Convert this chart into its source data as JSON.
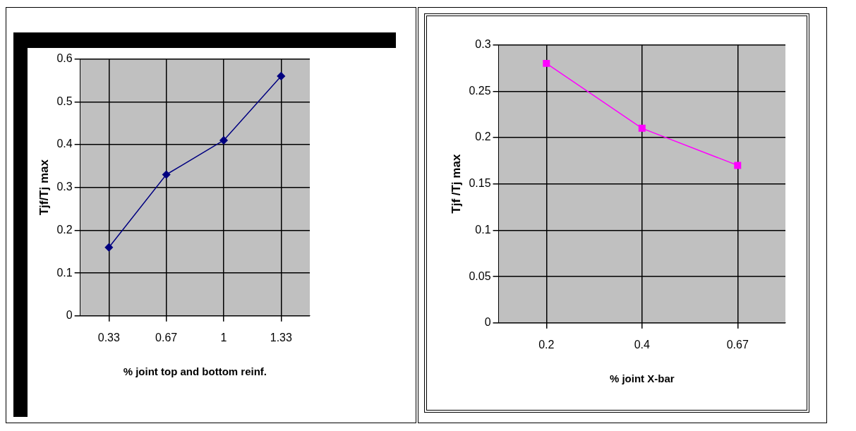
{
  "chart_data": [
    {
      "type": "line",
      "xlabel": "% joint top and bottom reinf.",
      "ylabel": "Tjf/Tj max",
      "categories": [
        "0.33",
        "0.67",
        "1",
        "1.33"
      ],
      "series": [
        {
          "color": "#000080",
          "values": [
            0.16,
            0.33,
            0.41,
            0.56
          ]
        }
      ],
      "ylim": [
        0,
        0.6
      ],
      "yticks": [
        0,
        0.1,
        0.2,
        0.3,
        0.4,
        0.5,
        0.6
      ],
      "grid": true,
      "marker": "diamond",
      "legend": false
    },
    {
      "type": "line",
      "xlabel": "% joint X-bar",
      "ylabel": "Tjf /Tj max",
      "categories": [
        "0.2",
        "0.4",
        "0.67"
      ],
      "series": [
        {
          "color": "#ff00ff",
          "values": [
            0.28,
            0.21,
            0.17
          ]
        }
      ],
      "ylim": [
        0,
        0.3
      ],
      "yticks": [
        0,
        0.05,
        0.1,
        0.15,
        0.2,
        0.25,
        0.3
      ],
      "grid": true,
      "marker": "square",
      "legend": false
    }
  ]
}
